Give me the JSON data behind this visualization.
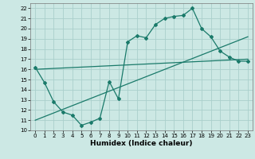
{
  "xlabel": "Humidex (Indice chaleur)",
  "bg_color": "#cce8e4",
  "grid_color": "#aacfcc",
  "line_color": "#1a7a6a",
  "xlim": [
    -0.5,
    23.5
  ],
  "ylim": [
    10,
    22.5
  ],
  "xticks": [
    0,
    1,
    2,
    3,
    4,
    5,
    6,
    7,
    8,
    9,
    10,
    11,
    12,
    13,
    14,
    15,
    16,
    17,
    18,
    19,
    20,
    21,
    22,
    23
  ],
  "yticks": [
    10,
    11,
    12,
    13,
    14,
    15,
    16,
    17,
    18,
    19,
    20,
    21,
    22
  ],
  "data_x": [
    0,
    1,
    2,
    3,
    4,
    5,
    6,
    7,
    8,
    9,
    10,
    11,
    12,
    13,
    14,
    15,
    16,
    17,
    18,
    19,
    20,
    21,
    22,
    23
  ],
  "data_y": [
    16.2,
    14.7,
    12.8,
    11.8,
    11.5,
    10.5,
    10.8,
    11.2,
    14.8,
    13.1,
    18.7,
    19.3,
    19.1,
    20.4,
    21.0,
    21.2,
    21.3,
    22.0,
    20.0,
    19.2,
    17.8,
    17.2,
    16.8,
    16.8
  ],
  "trend1_x": [
    0,
    23
  ],
  "trend1_y": [
    16.0,
    17.0
  ],
  "trend2_x": [
    0,
    23
  ],
  "trend2_y": [
    11.0,
    19.2
  ]
}
